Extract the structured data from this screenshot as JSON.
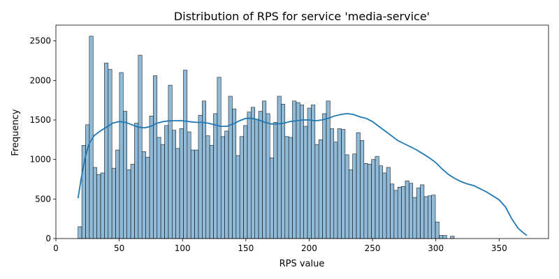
{
  "chart_data": {
    "type": "bar",
    "title": "Distribution of RPS for service 'media-service'",
    "xlabel": "RPS value",
    "ylabel": "Frequency",
    "xlim": [
      0,
      389
    ],
    "ylim": [
      0,
      2700
    ],
    "x_ticks": [
      0,
      50,
      100,
      150,
      200,
      250,
      300,
      350
    ],
    "y_ticks": [
      0,
      500,
      1000,
      1500,
      2000,
      2500
    ],
    "bin_start": 17.5,
    "bin_width": 2.97,
    "values": [
      150,
      1180,
      1440,
      2560,
      900,
      810,
      830,
      2220,
      2140,
      890,
      1120,
      2100,
      1610,
      870,
      940,
      1460,
      2320,
      1100,
      1030,
      1550,
      2060,
      1280,
      1190,
      1430,
      1940,
      1370,
      1140,
      1390,
      2130,
      1350,
      1120,
      1120,
      1560,
      1740,
      1300,
      1180,
      1580,
      2040,
      1290,
      1360,
      1800,
      1640,
      1050,
      1290,
      1430,
      1600,
      1660,
      1510,
      1610,
      1740,
      1580,
      1020,
      1470,
      1800,
      1700,
      1290,
      1280,
      1740,
      1720,
      1690,
      1420,
      1650,
      1690,
      1190,
      1250,
      1580,
      1740,
      1390,
      1220,
      1390,
      1380,
      1060,
      870,
      1070,
      1340,
      1240,
      950,
      940,
      1000,
      1040,
      920,
      830,
      900,
      690,
      610,
      650,
      660,
      730,
      700,
      520,
      640,
      680,
      530,
      540,
      550,
      210,
      40,
      40,
      0,
      30
    ],
    "kde_x": [
      17.5,
      20,
      23,
      26,
      30,
      35,
      40,
      45,
      50,
      55,
      60,
      65,
      70,
      75,
      80,
      85,
      90,
      95,
      100,
      105,
      110,
      115,
      120,
      125,
      130,
      135,
      140,
      145,
      150,
      155,
      160,
      165,
      170,
      175,
      180,
      185,
      190,
      195,
      200,
      205,
      210,
      215,
      220,
      225,
      230,
      235,
      240,
      245,
      250,
      255,
      260,
      265,
      270,
      275,
      280,
      285,
      290,
      295,
      300,
      305,
      310,
      315,
      320,
      325,
      330,
      335,
      340,
      345,
      350,
      355,
      360,
      365,
      370,
      372
    ],
    "kde_y": [
      510,
      760,
      1020,
      1190,
      1300,
      1360,
      1410,
      1460,
      1480,
      1470,
      1440,
      1410,
      1400,
      1420,
      1460,
      1480,
      1490,
      1490,
      1490,
      1480,
      1470,
      1470,
      1460,
      1440,
      1420,
      1420,
      1450,
      1490,
      1520,
      1520,
      1500,
      1470,
      1450,
      1450,
      1460,
      1480,
      1490,
      1500,
      1500,
      1490,
      1500,
      1520,
      1550,
      1570,
      1580,
      1570,
      1540,
      1520,
      1480,
      1420,
      1360,
      1300,
      1240,
      1200,
      1160,
      1120,
      1070,
      1020,
      960,
      880,
      810,
      760,
      720,
      690,
      670,
      630,
      590,
      540,
      490,
      400,
      250,
      130,
      60,
      40
    ]
  }
}
